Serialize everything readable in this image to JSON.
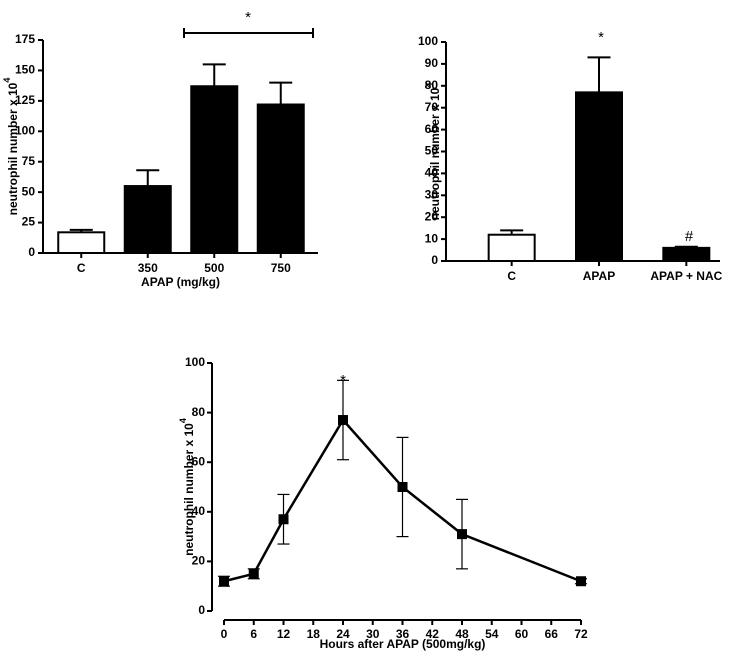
{
  "chart_data": [
    {
      "type": "bar",
      "categories": [
        "C",
        "350",
        "500",
        "750"
      ],
      "values": [
        17,
        55,
        137,
        122
      ],
      "errors": [
        2,
        13,
        18,
        18
      ],
      "colors": [
        "#ffffff",
        "#000000",
        "#000000",
        "#000000"
      ],
      "ylim": [
        0,
        175
      ],
      "yticks": [
        0,
        25,
        50,
        75,
        100,
        125,
        150,
        175
      ],
      "x_label": "APAP (mg/kg)",
      "y_label": {
        "text": "neutrophil number x 10",
        "superscript": "4"
      },
      "annotations": [
        {
          "text": "*"
        }
      ]
    },
    {
      "type": "bar",
      "categories": [
        "C",
        "APAP",
        "APAP + NAC"
      ],
      "values": [
        12,
        77,
        6
      ],
      "errors": [
        2,
        16,
        0.5
      ],
      "colors": [
        "#ffffff",
        "#000000",
        "#000000"
      ],
      "ylim": [
        0,
        100
      ],
      "yticks": [
        0,
        10,
        20,
        30,
        40,
        50,
        60,
        70,
        80,
        90,
        100
      ],
      "y_label": {
        "text": "neutrophil number x 10",
        "superscript": "4"
      },
      "annotations": [
        {
          "text": "*"
        },
        {
          "text": "#"
        }
      ]
    },
    {
      "type": "line",
      "x": [
        0,
        6,
        12,
        24,
        36,
        48,
        72
      ],
      "values": [
        12,
        15,
        37,
        77,
        50,
        31,
        12
      ],
      "errors": [
        2,
        2,
        10,
        16,
        20,
        14,
        1
      ],
      "color": "#000000",
      "xlim": [
        0,
        72
      ],
      "xticks": [
        0,
        6,
        12,
        18,
        24,
        30,
        36,
        42,
        48,
        54,
        60,
        66,
        72
      ],
      "ylim": [
        0,
        100
      ],
      "yticks": [
        0,
        20,
        40,
        60,
        80,
        100
      ],
      "x_label": "Hours after APAP (500mg/kg)",
      "y_label": {
        "text": "neutrophil number x 10",
        "superscript": "4"
      },
      "annotations": [
        {
          "text": "*"
        }
      ]
    }
  ]
}
